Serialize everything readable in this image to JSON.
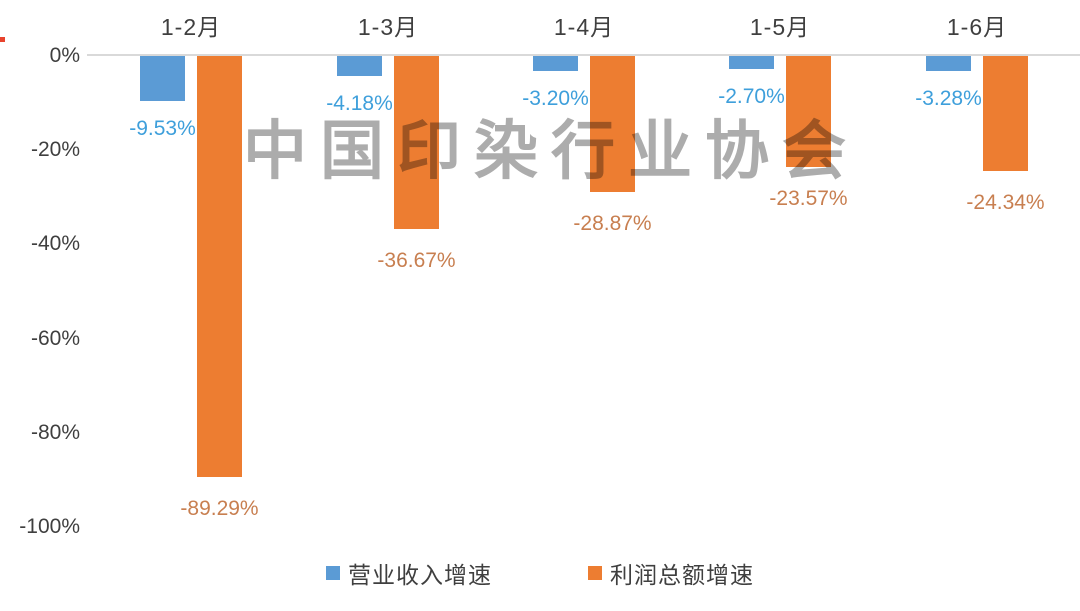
{
  "chart_data": {
    "type": "bar",
    "title": "",
    "categories": [
      "1-2月",
      "1-3月",
      "1-4月",
      "1-5月",
      "1-6月"
    ],
    "series": [
      {
        "name": "营业收入增速",
        "color": "#5b9bd5",
        "label_color": "#3e9fdb",
        "values": [
          -9.53,
          -4.18,
          -3.2,
          -2.7,
          -3.28
        ],
        "labels": [
          "-9.53%",
          "-4.18%",
          "-3.20%",
          "-2.70%",
          "-3.28%"
        ]
      },
      {
        "name": "利润总额增速",
        "color": "#ed7d31",
        "label_color": "#c87f50",
        "values": [
          -89.29,
          -36.67,
          -28.87,
          -23.57,
          -24.34
        ],
        "labels": [
          "-89.29%",
          "-36.67%",
          "-28.87%",
          "-23.57%",
          "-24.34%"
        ]
      }
    ],
    "y_axis": {
      "min": -100,
      "max": 0,
      "ticks": [
        {
          "label": "0%",
          "value": 0
        },
        {
          "label": "-20%",
          "value": -20
        },
        {
          "label": "-40%",
          "value": -40
        },
        {
          "label": "-60%",
          "value": -60
        },
        {
          "label": "-80%",
          "value": -80
        },
        {
          "label": "-100%",
          "value": -100
        }
      ]
    },
    "grid": false,
    "legend_position": "bottom",
    "legend": [
      "营业收入增速",
      "利润总额增速"
    ],
    "watermark": "中国印染行业协会"
  }
}
